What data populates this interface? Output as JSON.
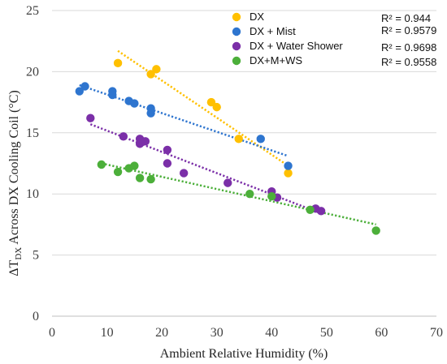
{
  "chart_data": {
    "type": "scatter",
    "xlabel": "Ambient Relative Humidity (%)",
    "ylabel_main": "ΔT",
    "ylabel_sub": "DX",
    "ylabel_rest": " Across DX Cooling Coil (°C)",
    "xlim": [
      0,
      70
    ],
    "ylim": [
      0,
      25
    ],
    "x_ticks": [
      "0",
      "10",
      "20",
      "30",
      "40",
      "50",
      "60",
      "70"
    ],
    "y_ticks": [
      "0",
      "5",
      "10",
      "15",
      "20",
      "25"
    ],
    "grid": "horizontal",
    "legend_position": "top-right",
    "trendline_style": "dotted linear",
    "series": [
      {
        "name": "DX",
        "color": "#FFC000",
        "r2": "R² = 0.944",
        "x": [
          12,
          18,
          19,
          29,
          30,
          34,
          43
        ],
        "y": [
          20.7,
          19.8,
          20.2,
          17.5,
          17.1,
          14.5,
          11.7
        ],
        "trend_x": [
          12,
          43
        ],
        "trend_y": [
          21.7,
          12.3
        ]
      },
      {
        "name": "DX + Mist",
        "color": "#2E75CF",
        "r2": "R² = 0.9579",
        "x": [
          5,
          6,
          11,
          11,
          14,
          15,
          18,
          18,
          38,
          43
        ],
        "y": [
          18.4,
          18.8,
          18.4,
          18.1,
          17.6,
          17.4,
          17.0,
          16.6,
          14.5,
          12.3
        ],
        "trend_x": [
          5,
          43
        ],
        "trend_y": [
          18.9,
          13.1
        ]
      },
      {
        "name": "DX + Water Shower",
        "color": "#7B2FA8",
        "r2": "R² = 0.9698",
        "x": [
          7,
          13,
          16,
          16,
          17,
          21,
          21,
          24,
          32,
          40,
          41,
          48,
          49
        ],
        "y": [
          16.2,
          14.7,
          14.5,
          14.1,
          14.3,
          13.6,
          12.5,
          11.7,
          10.9,
          10.2,
          9.7,
          8.8,
          8.6
        ],
        "trend_x": [
          7,
          49
        ],
        "trend_y": [
          15.7,
          8.4
        ]
      },
      {
        "name": "DX+M+WS",
        "color": "#4CAF3A",
        "r2": "R² = 0.9558",
        "x": [
          9,
          12,
          14,
          15,
          16,
          18,
          36,
          40,
          47,
          59
        ],
        "y": [
          12.4,
          11.8,
          12.1,
          12.3,
          11.3,
          11.2,
          10.0,
          9.8,
          8.7,
          7.0
        ],
        "trend_x": [
          9,
          59
        ],
        "trend_y": [
          12.5,
          7.5
        ]
      }
    ]
  }
}
